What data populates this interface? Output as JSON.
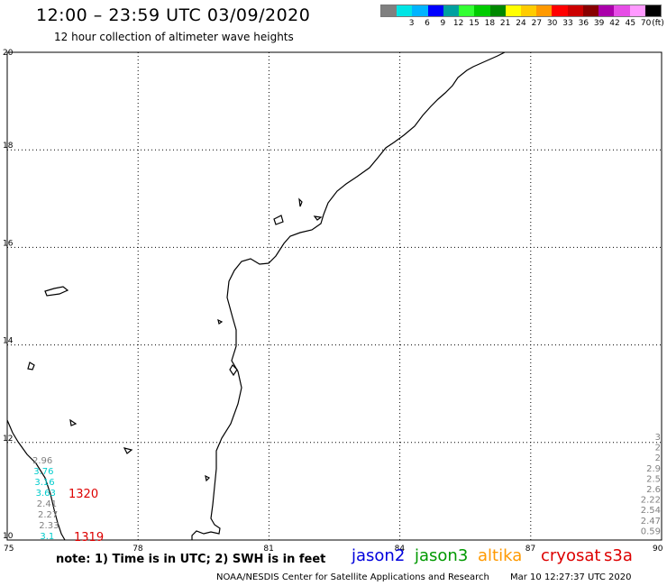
{
  "title": "12:00 – 23:59 UTC 03/09/2020",
  "subtitle": "12 hour collection of altimeter wave heights",
  "legend": {
    "unit": "(ft)",
    "swatches": [
      {
        "color": "#808080",
        "label": ""
      },
      {
        "color": "#00e5e5",
        "label": "3"
      },
      {
        "color": "#00b4ff",
        "label": "6"
      },
      {
        "color": "#0000ff",
        "label": "9"
      },
      {
        "color": "#00a0a0",
        "label": "12"
      },
      {
        "color": "#33ff33",
        "label": "15"
      },
      {
        "color": "#00cc00",
        "label": "18"
      },
      {
        "color": "#008800",
        "label": "21"
      },
      {
        "color": "#ffff00",
        "label": "24"
      },
      {
        "color": "#ffcc00",
        "label": "27"
      },
      {
        "color": "#ff9900",
        "label": "30"
      },
      {
        "color": "#ff0000",
        "label": "33"
      },
      {
        "color": "#cc0000",
        "label": "36"
      },
      {
        "color": "#880000",
        "label": "39"
      },
      {
        "color": "#aa00aa",
        "label": "42"
      },
      {
        "color": "#e64de6",
        "label": "45"
      },
      {
        "color": "#ff99ff",
        "label": "70"
      },
      {
        "color": "#000000",
        "label": ""
      }
    ]
  },
  "map": {
    "lon_ticks": [
      "75",
      "78",
      "81",
      "84",
      "87",
      "90"
    ],
    "lat_ticks": [
      "20",
      "18",
      "16",
      "14",
      "12",
      "10"
    ],
    "lon_range": [
      75,
      90
    ],
    "lat_range": [
      10,
      20
    ]
  },
  "observations": {
    "left_track": [
      {
        "value": "2.96",
        "color": "#808080"
      },
      {
        "value": "3.76",
        "color": "#00cccc"
      },
      {
        "value": "3.16",
        "color": "#00cccc"
      },
      {
        "value": "3.63",
        "color": "#00cccc"
      },
      {
        "value": "2.41",
        "color": "#808080"
      },
      {
        "value": "2.27",
        "color": "#808080"
      },
      {
        "value": "2.33",
        "color": "#808080"
      },
      {
        "value": "3.1",
        "color": "#00cccc"
      }
    ],
    "right_track": [
      {
        "value": "3",
        "color": "#808080"
      },
      {
        "value": "2",
        "color": "#808080"
      },
      {
        "value": "2",
        "color": "#808080"
      },
      {
        "value": "2.9",
        "color": "#808080"
      },
      {
        "value": "2.5",
        "color": "#808080"
      },
      {
        "value": "2.6",
        "color": "#808080"
      },
      {
        "value": "2.22",
        "color": "#808080"
      },
      {
        "value": "2.54",
        "color": "#808080"
      },
      {
        "value": "2.47",
        "color": "#808080"
      },
      {
        "value": "0.59",
        "color": "#808080"
      }
    ],
    "pass_times": [
      {
        "value": "1320",
        "color": "#dd0000"
      },
      {
        "value": "1319",
        "color": "#dd0000"
      }
    ]
  },
  "footer": {
    "note": "note:  1) Time is in UTC;  2) SWH is in feet",
    "satellites": [
      {
        "name": "jason2",
        "color": "#0000dd"
      },
      {
        "name": "jason3",
        "color": "#009900"
      },
      {
        "name": "altika",
        "color": "#ff9900"
      },
      {
        "name": "cryosat",
        "color": "#dd0000"
      },
      {
        "name": "s3a",
        "color": "#dd0000"
      }
    ],
    "credit": "NOAA/NESDIS Center for Satellite Applications and Research",
    "timestamp": "Mar 10 12:27:37 UTC 2020"
  }
}
